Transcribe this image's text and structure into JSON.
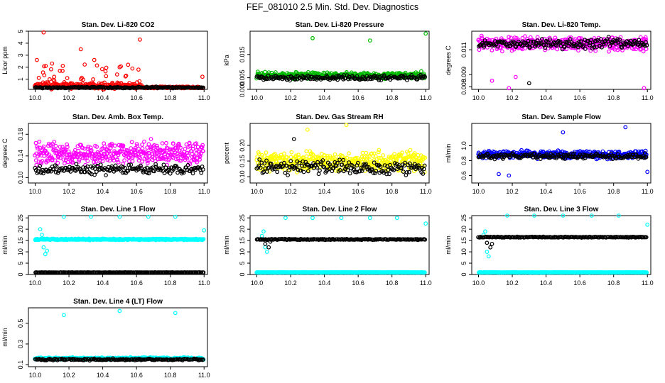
{
  "figure": {
    "title": "FEF_081010  2.5 Min. Std. Dev. Diagnostics"
  },
  "chart_data": [
    {
      "type": "scatter",
      "title": "Stan. Dev. Li-820 CO2",
      "ylabel": "Licor ppm",
      "xlim": [
        9.96,
        11.02
      ],
      "ylim": [
        0.15,
        5.0
      ],
      "xticks": [
        "10.0",
        "10.2",
        "10.4",
        "10.6",
        "10.8",
        "11.0"
      ],
      "yticks": [
        "1",
        "2",
        "3",
        "4",
        "5"
      ],
      "series": [
        {
          "name": "sd-a",
          "color": "#ff0000",
          "base": 0.45,
          "spread": 0.35,
          "sparse_after": 10.63,
          "outliers": [
            [
              10.05,
              4.9
            ],
            [
              10.01,
              2.6
            ],
            [
              10.27,
              3.5
            ],
            [
              10.62,
              4.3
            ],
            [
              10.1,
              2.3
            ],
            [
              10.35,
              2.6
            ],
            [
              10.5,
              2.0
            ],
            [
              10.55,
              2.2
            ],
            [
              10.99,
              1.2
            ]
          ]
        },
        {
          "name": "sd-b",
          "color": "#000000",
          "base": 0.3,
          "spread": 0.08,
          "outliers": []
        }
      ]
    },
    {
      "type": "scatter",
      "title": "Stan. Dev. Li-820 Pressure",
      "ylabel": "kPa",
      "xlim": [
        9.96,
        11.02
      ],
      "ylim": [
        0.0,
        0.025
      ],
      "xticks": [
        "10.0",
        "10.2",
        "10.4",
        "10.6",
        "10.8",
        "11.0"
      ],
      "yticks": [
        "0.000",
        "0.005",
        "0.015"
      ],
      "series": [
        {
          "name": "sd-a",
          "color": "#00bb00",
          "base": 0.006,
          "spread": 0.002,
          "outliers": [
            [
              10.33,
              0.022
            ],
            [
              10.67,
              0.021
            ],
            [
              11.0,
              0.024
            ]
          ]
        },
        {
          "name": "sd-b",
          "color": "#000000",
          "base": 0.005,
          "spread": 0.0015,
          "outliers": []
        }
      ]
    },
    {
      "type": "scatter",
      "title": "Stan. Dev. Li-820 Temp.",
      "ylabel": "degrees C",
      "xlim": [
        9.96,
        11.02
      ],
      "ylim": [
        0.0078,
        0.0125
      ],
      "xticks": [
        "10.0",
        "10.2",
        "10.4",
        "10.6",
        "10.8",
        "11.0"
      ],
      "yticks": [
        "0.008",
        "0.009",
        "0.011"
      ],
      "series": [
        {
          "name": "sd-a",
          "color": "#ff00ff",
          "base": 0.0115,
          "spread": 0.0008,
          "outliers": [
            [
              10.08,
              0.0085
            ],
            [
              10.18,
              0.0079
            ],
            [
              10.98,
              0.0079
            ],
            [
              10.22,
              0.0088
            ]
          ]
        },
        {
          "name": "sd-b",
          "color": "#000000",
          "base": 0.0115,
          "spread": 0.0006,
          "outliers": [
            [
              10.3,
              0.0083
            ]
          ]
        }
      ]
    },
    {
      "type": "scatter",
      "title": "Stan. Dev. Amb. Box Temp.",
      "ylabel": "degrees C",
      "xlim": [
        9.96,
        11.02
      ],
      "ylim": [
        0.09,
        0.2
      ],
      "xticks": [
        "10.0",
        "10.2",
        "10.4",
        "10.6",
        "10.8",
        "11.0"
      ],
      "yticks": [
        "0.10",
        "0.14",
        "0.18"
      ],
      "series": [
        {
          "name": "sd-a",
          "color": "#ff00ff",
          "base": 0.145,
          "spread": 0.03,
          "outliers": []
        },
        {
          "name": "sd-b",
          "color": "#000000",
          "base": 0.115,
          "spread": 0.012,
          "outliers": []
        }
      ]
    },
    {
      "type": "scatter",
      "title": "Stan. Dev. Gas Stream RH",
      "ylabel": "percent",
      "xlim": [
        9.96,
        11.02
      ],
      "ylim": [
        0.08,
        0.27
      ],
      "xticks": [
        "10.0",
        "10.2",
        "10.4",
        "10.6",
        "10.8",
        "11.0"
      ],
      "yticks": [
        "0.10",
        "0.15",
        "0.20"
      ],
      "series": [
        {
          "name": "sd-a",
          "color": "#ffff00",
          "base": 0.15,
          "spread": 0.045,
          "outliers": [
            [
              10.53,
              0.265
            ],
            [
              10.3,
              0.25
            ]
          ]
        },
        {
          "name": "sd-b",
          "color": "#000000",
          "base": 0.13,
          "spread": 0.035,
          "outliers": [
            [
              10.22,
              0.22
            ]
          ]
        }
      ]
    },
    {
      "type": "scatter",
      "title": "Stan. Dev. Sample Flow",
      "ylabel": "ml/min",
      "xlim": [
        9.96,
        11.02
      ],
      "ylim": [
        0.5,
        1.3
      ],
      "xticks": [
        "10.0",
        "10.2",
        "10.4",
        "10.6",
        "10.8",
        "11.0"
      ],
      "yticks": [
        "0.6",
        "0.8",
        "1.0"
      ],
      "series": [
        {
          "name": "sd-a",
          "color": "#0000ff",
          "base": 0.88,
          "spread": 0.07,
          "outliers": [
            [
              10.5,
              1.18
            ],
            [
              10.87,
              1.25
            ],
            [
              10.12,
              0.62
            ],
            [
              10.18,
              0.6
            ],
            [
              11.0,
              0.65
            ]
          ]
        },
        {
          "name": "sd-b",
          "color": "#000000",
          "base": 0.86,
          "spread": 0.05,
          "outliers": []
        }
      ]
    },
    {
      "type": "scatter",
      "title": "Stan. Dev. Line 1 Flow",
      "ylabel": "ml/min",
      "xlim": [
        9.96,
        11.02
      ],
      "ylim": [
        0,
        26
      ],
      "xticks": [
        "10.0",
        "10.2",
        "10.4",
        "10.6",
        "10.8",
        "11.0"
      ],
      "yticks": [
        "0",
        "5",
        "10",
        "15",
        "20",
        "25"
      ],
      "series": [
        {
          "name": "sd-a",
          "color": "#00ffff",
          "base": 15.5,
          "spread": 0.4,
          "outliers": [
            [
              10.03,
              20
            ],
            [
              10.04,
              17.5
            ],
            [
              10.05,
              12
            ],
            [
              10.06,
              9
            ],
            [
              10.07,
              10.5
            ],
            [
              10.17,
              25.5
            ],
            [
              10.33,
              25.5
            ],
            [
              10.5,
              25.5
            ],
            [
              10.67,
              25.5
            ],
            [
              10.83,
              25.5
            ],
            [
              11.0,
              19.5
            ]
          ]
        },
        {
          "name": "sd-b",
          "color": "#000000",
          "base": 0.9,
          "spread": 0.1,
          "outliers": []
        }
      ]
    },
    {
      "type": "scatter",
      "title": "Stan. Dev. Line 2 Flow",
      "ylabel": "ml/min",
      "xlim": [
        9.96,
        11.02
      ],
      "ylim": [
        0,
        26
      ],
      "xticks": [
        "10.0",
        "10.2",
        "10.4",
        "10.6",
        "10.8",
        "11.0"
      ],
      "yticks": [
        "0",
        "5",
        "10",
        "15",
        "20",
        "25"
      ],
      "series": [
        {
          "name": "sd-a",
          "color": "#00ffff",
          "base": 0.9,
          "spread": 0.1,
          "outliers": [
            [
              10.03,
              17
            ],
            [
              10.04,
              19
            ],
            [
              10.05,
              12
            ],
            [
              10.06,
              10
            ],
            [
              10.17,
              25
            ],
            [
              10.33,
              25
            ],
            [
              10.5,
              25
            ],
            [
              10.67,
              25
            ],
            [
              10.83,
              25
            ],
            [
              11.0,
              22.5
            ]
          ]
        },
        {
          "name": "sd-b",
          "color": "#000000",
          "base": 15.5,
          "spread": 0.3,
          "outliers": [
            [
              10.05,
              13.5
            ],
            [
              10.07,
              12
            ],
            [
              10.08,
              14.5
            ]
          ]
        }
      ]
    },
    {
      "type": "scatter",
      "title": "Stan. Dev. Line 3 Flow",
      "ylabel": "ml/min",
      "xlim": [
        9.96,
        11.02
      ],
      "ylim": [
        0,
        26
      ],
      "xticks": [
        "10.0",
        "10.2",
        "10.4",
        "10.6",
        "10.8",
        "11.0"
      ],
      "yticks": [
        "0",
        "5",
        "10",
        "15",
        "20",
        "25"
      ],
      "series": [
        {
          "name": "sd-a",
          "color": "#00ffff",
          "base": 0.9,
          "spread": 0.1,
          "outliers": [
            [
              10.03,
              17.5
            ],
            [
              10.04,
              19
            ],
            [
              10.05,
              10
            ],
            [
              10.06,
              8
            ],
            [
              10.17,
              26
            ],
            [
              10.33,
              26
            ],
            [
              10.5,
              26
            ],
            [
              10.67,
              26
            ],
            [
              10.83,
              26
            ],
            [
              11.0,
              22
            ]
          ]
        },
        {
          "name": "sd-b",
          "color": "#000000",
          "base": 16.5,
          "spread": 0.3,
          "outliers": [
            [
              10.05,
              14
            ],
            [
              10.07,
              12
            ],
            [
              10.08,
              13.5
            ]
          ]
        }
      ]
    },
    {
      "type": "scatter",
      "title": "Stan. Dev. Line 4 (LT) Flow",
      "ylabel": "ml/min",
      "xlim": [
        9.96,
        11.02
      ],
      "ylim": [
        0.08,
        0.65
      ],
      "xticks": [
        "10.0",
        "10.2",
        "10.4",
        "10.6",
        "10.8",
        "11.0"
      ],
      "yticks": [
        "0.1",
        "0.3",
        "0.5"
      ],
      "series": [
        {
          "name": "sd-a",
          "color": "#00ffff",
          "base": 0.16,
          "spread": 0.015,
          "outliers": [
            [
              10.17,
              0.58
            ],
            [
              10.5,
              0.62
            ],
            [
              10.83,
              0.6
            ]
          ]
        },
        {
          "name": "sd-b",
          "color": "#000000",
          "base": 0.15,
          "spread": 0.012,
          "outliers": []
        }
      ]
    }
  ]
}
